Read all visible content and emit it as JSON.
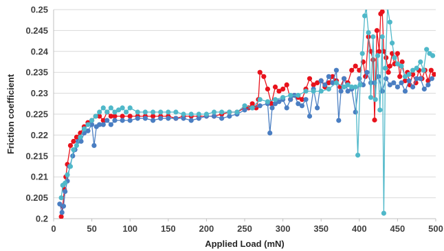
{
  "chart_data": {
    "type": "line",
    "title": "",
    "xlabel": "Applied Load (mN)",
    "ylabel": "Friction coefficient",
    "xlim": [
      0,
      500
    ],
    "ylim": [
      0.2,
      0.25
    ],
    "x_ticks": [
      0,
      50,
      100,
      150,
      200,
      250,
      300,
      350,
      400,
      450,
      500
    ],
    "y_ticks": [
      "0.2",
      "0.205",
      "0.21",
      "0.215",
      "0.22",
      "0.225",
      "0.23",
      "0.235",
      "0.24",
      "0.245",
      "0.25"
    ],
    "grid": "horizontal",
    "legend": "none",
    "colors": [
      "#e8121c",
      "#4a7ec2",
      "#4fb8c9"
    ],
    "series": [
      {
        "color": "#e8121c",
        "points": [
          [
            10,
            0.2005
          ],
          [
            12,
            0.203
          ],
          [
            14,
            0.207
          ],
          [
            16,
            0.21
          ],
          [
            18,
            0.213
          ],
          [
            22,
            0.2175
          ],
          [
            26,
            0.2185
          ],
          [
            30,
            0.2195
          ],
          [
            35,
            0.2205
          ],
          [
            40,
            0.222
          ],
          [
            45,
            0.223
          ],
          [
            50,
            0.2235
          ],
          [
            55,
            0.2245
          ],
          [
            60,
            0.2245
          ],
          [
            65,
            0.2235
          ],
          [
            70,
            0.2255
          ],
          [
            75,
            0.2245
          ],
          [
            80,
            0.2245
          ],
          [
            90,
            0.2245
          ],
          [
            100,
            0.2245
          ],
          [
            110,
            0.2245
          ],
          [
            120,
            0.2245
          ],
          [
            130,
            0.2245
          ],
          [
            140,
            0.2245
          ],
          [
            150,
            0.2245
          ],
          [
            160,
            0.224
          ],
          [
            170,
            0.2245
          ],
          [
            180,
            0.2245
          ],
          [
            190,
            0.2245
          ],
          [
            200,
            0.2245
          ],
          [
            210,
            0.2245
          ],
          [
            220,
            0.225
          ],
          [
            230,
            0.2255
          ],
          [
            240,
            0.2255
          ],
          [
            250,
            0.2265
          ],
          [
            255,
            0.2265
          ],
          [
            260,
            0.2275
          ],
          [
            265,
            0.2265
          ],
          [
            268,
            0.2285
          ],
          [
            270,
            0.235
          ],
          [
            275,
            0.234
          ],
          [
            280,
            0.231
          ],
          [
            285,
            0.2275
          ],
          [
            290,
            0.2315
          ],
          [
            295,
            0.2305
          ],
          [
            300,
            0.231
          ],
          [
            305,
            0.232
          ],
          [
            310,
            0.2285
          ],
          [
            315,
            0.2295
          ],
          [
            320,
            0.229
          ],
          [
            325,
            0.2285
          ],
          [
            330,
            0.231
          ],
          [
            335,
            0.2335
          ],
          [
            340,
            0.232
          ],
          [
            345,
            0.2325
          ],
          [
            350,
            0.233
          ],
          [
            355,
            0.2315
          ],
          [
            360,
            0.2325
          ],
          [
            365,
            0.234
          ],
          [
            370,
            0.233
          ],
          [
            375,
            0.2315
          ],
          [
            380,
            0.2335
          ],
          [
            385,
            0.2325
          ],
          [
            390,
            0.2355
          ],
          [
            395,
            0.2365
          ],
          [
            400,
            0.2355
          ],
          [
            405,
            0.2375
          ],
          [
            408,
            0.234
          ],
          [
            412,
            0.2435
          ],
          [
            415,
            0.24
          ],
          [
            418,
            0.238
          ],
          [
            420,
            0.2236
          ],
          [
            423,
            0.245
          ],
          [
            426,
            0.24
          ],
          [
            428,
            0.249
          ],
          [
            430,
            0.2495
          ],
          [
            432,
            0.24
          ],
          [
            435,
            0.2385
          ],
          [
            438,
            0.235
          ],
          [
            440,
            0.2365
          ],
          [
            443,
            0.2395
          ],
          [
            446,
            0.237
          ],
          [
            450,
            0.2395
          ],
          [
            453,
            0.234
          ],
          [
            456,
            0.2375
          ],
          [
            460,
            0.233
          ],
          [
            463,
            0.235
          ],
          [
            466,
            0.232
          ],
          [
            470,
            0.2345
          ],
          [
            474,
            0.2325
          ],
          [
            478,
            0.2355
          ],
          [
            482,
            0.2335
          ],
          [
            486,
            0.2355
          ],
          [
            490,
            0.233
          ],
          [
            494,
            0.2355
          ],
          [
            498,
            0.2345
          ]
        ]
      },
      {
        "color": "#4a7ec2",
        "points": [
          [
            8,
            0.2035
          ],
          [
            11,
            0.2015
          ],
          [
            13,
            0.203
          ],
          [
            15,
            0.2065
          ],
          [
            18,
            0.209
          ],
          [
            21,
            0.2125
          ],
          [
            25,
            0.215
          ],
          [
            28,
            0.2165
          ],
          [
            32,
            0.2185
          ],
          [
            36,
            0.2185
          ],
          [
            40,
            0.2205
          ],
          [
            45,
            0.221
          ],
          [
            50,
            0.2225
          ],
          [
            53,
            0.2175
          ],
          [
            56,
            0.222
          ],
          [
            60,
            0.2225
          ],
          [
            65,
            0.2225
          ],
          [
            70,
            0.2235
          ],
          [
            75,
            0.2225
          ],
          [
            80,
            0.2235
          ],
          [
            90,
            0.2235
          ],
          [
            100,
            0.2235
          ],
          [
            110,
            0.224
          ],
          [
            120,
            0.224
          ],
          [
            130,
            0.2235
          ],
          [
            140,
            0.224
          ],
          [
            150,
            0.224
          ],
          [
            160,
            0.224
          ],
          [
            170,
            0.224
          ],
          [
            180,
            0.2235
          ],
          [
            190,
            0.224
          ],
          [
            200,
            0.2245
          ],
          [
            210,
            0.2245
          ],
          [
            220,
            0.224
          ],
          [
            230,
            0.2245
          ],
          [
            240,
            0.225
          ],
          [
            250,
            0.226
          ],
          [
            260,
            0.2265
          ],
          [
            270,
            0.227
          ],
          [
            280,
            0.2275
          ],
          [
            283,
            0.2205
          ],
          [
            286,
            0.2265
          ],
          [
            290,
            0.2275
          ],
          [
            295,
            0.228
          ],
          [
            300,
            0.2285
          ],
          [
            305,
            0.2265
          ],
          [
            310,
            0.2285
          ],
          [
            315,
            0.2295
          ],
          [
            320,
            0.2275
          ],
          [
            325,
            0.227
          ],
          [
            330,
            0.2285
          ],
          [
            335,
            0.2245
          ],
          [
            340,
            0.231
          ],
          [
            345,
            0.2265
          ],
          [
            350,
            0.233
          ],
          [
            355,
            0.232
          ],
          [
            360,
            0.234
          ],
          [
            365,
            0.2325
          ],
          [
            370,
            0.2355
          ],
          [
            373,
            0.2235
          ],
          [
            376,
            0.2305
          ],
          [
            380,
            0.2335
          ],
          [
            385,
            0.2305
          ],
          [
            390,
            0.231
          ],
          [
            395,
            0.2255
          ],
          [
            400,
            0.2335
          ],
          [
            405,
            0.232
          ],
          [
            410,
            0.235
          ],
          [
            415,
            0.2325
          ],
          [
            420,
            0.2325
          ],
          [
            425,
            0.234
          ],
          [
            430,
            0.2305
          ],
          [
            435,
            0.2335
          ],
          [
            440,
            0.232
          ],
          [
            445,
            0.2325
          ],
          [
            450,
            0.2315
          ],
          [
            455,
            0.2325
          ],
          [
            460,
            0.2305
          ],
          [
            465,
            0.233
          ],
          [
            470,
            0.2315
          ],
          [
            475,
            0.2335
          ],
          [
            480,
            0.2335
          ],
          [
            485,
            0.231
          ],
          [
            490,
            0.232
          ],
          [
            495,
            0.2335
          ]
        ]
      },
      {
        "color": "#4fb8c9",
        "points": [
          [
            10,
            0.205
          ],
          [
            12,
            0.208
          ],
          [
            15,
            0.2085
          ],
          [
            18,
            0.2105
          ],
          [
            22,
            0.2125
          ],
          [
            26,
            0.2165
          ],
          [
            30,
            0.2175
          ],
          [
            35,
            0.2195
          ],
          [
            40,
            0.2215
          ],
          [
            45,
            0.2225
          ],
          [
            50,
            0.2235
          ],
          [
            55,
            0.2245
          ],
          [
            60,
            0.2255
          ],
          [
            65,
            0.2265
          ],
          [
            70,
            0.2255
          ],
          [
            75,
            0.2265
          ],
          [
            80,
            0.2255
          ],
          [
            85,
            0.226
          ],
          [
            90,
            0.2265
          ],
          [
            95,
            0.2255
          ],
          [
            100,
            0.2265
          ],
          [
            110,
            0.2255
          ],
          [
            120,
            0.2255
          ],
          [
            130,
            0.2255
          ],
          [
            140,
            0.2255
          ],
          [
            150,
            0.2255
          ],
          [
            160,
            0.2255
          ],
          [
            170,
            0.225
          ],
          [
            180,
            0.225
          ],
          [
            190,
            0.225
          ],
          [
            200,
            0.225
          ],
          [
            210,
            0.2255
          ],
          [
            220,
            0.2255
          ],
          [
            230,
            0.2255
          ],
          [
            240,
            0.2255
          ],
          [
            250,
            0.227
          ],
          [
            260,
            0.2265
          ],
          [
            270,
            0.2285
          ],
          [
            280,
            0.228
          ],
          [
            290,
            0.2285
          ],
          [
            300,
            0.229
          ],
          [
            310,
            0.2295
          ],
          [
            320,
            0.2295
          ],
          [
            330,
            0.2305
          ],
          [
            340,
            0.2305
          ],
          [
            350,
            0.2305
          ],
          [
            360,
            0.231
          ],
          [
            370,
            0.2325
          ],
          [
            380,
            0.2315
          ],
          [
            385,
            0.232
          ],
          [
            390,
            0.2315
          ],
          [
            395,
            0.2315
          ],
          [
            398,
            0.2152
          ],
          [
            401,
            0.232
          ],
          [
            404,
            0.2395
          ],
          [
            407,
            0.2485
          ],
          [
            409,
            0.2505
          ],
          [
            412,
            0.2445
          ],
          [
            415,
            0.229
          ],
          [
            418,
            0.2435
          ],
          [
            421,
            0.2285
          ],
          [
            424,
            0.239
          ],
          [
            427,
            0.226
          ],
          [
            430,
            0.2435
          ],
          [
            432,
            0.2013
          ],
          [
            434,
            0.236
          ],
          [
            437,
            0.2505
          ],
          [
            440,
            0.247
          ],
          [
            443,
            0.242
          ],
          [
            446,
            0.2385
          ],
          [
            450,
            0.237
          ],
          [
            455,
            0.2365
          ],
          [
            460,
            0.234
          ],
          [
            465,
            0.2345
          ],
          [
            470,
            0.2355
          ],
          [
            475,
            0.236
          ],
          [
            480,
            0.2375
          ],
          [
            484,
            0.2355
          ],
          [
            488,
            0.2405
          ],
          [
            492,
            0.2395
          ],
          [
            496,
            0.239
          ]
        ]
      }
    ]
  }
}
